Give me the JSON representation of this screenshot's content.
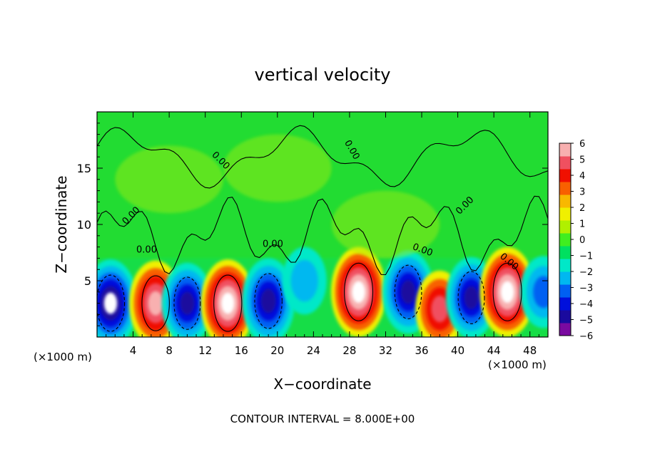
{
  "chart_data": {
    "type": "heatmap",
    "title": "vertical velocity",
    "xlabel": "X−coordinate",
    "ylabel": "Z−coordinate",
    "x_unit_left": "(×1000 m)",
    "x_unit_right": "(×1000 m)",
    "footer": "CONTOUR INTERVAL = 8.000E+00",
    "contour_label": "0.00",
    "xlim": [
      0,
      50
    ],
    "ylim": [
      0,
      20
    ],
    "x_ticks": [
      4,
      8,
      12,
      16,
      20,
      24,
      28,
      32,
      36,
      40,
      44,
      48
    ],
    "x_tick_labels": [
      "4",
      "8",
      "12",
      "16",
      "20",
      "24",
      "28",
      "32",
      "36",
      "40",
      "44",
      "48"
    ],
    "y_ticks": [
      5,
      10,
      15
    ],
    "y_tick_labels": [
      "5",
      "10",
      "15"
    ],
    "colorbar": {
      "min": -6,
      "max": 6,
      "tick_values": [
        6,
        5,
        4,
        3,
        2,
        1,
        0,
        -1,
        -2,
        -3,
        -4,
        -5,
        -6
      ],
      "tick_labels": [
        "6",
        "5",
        "4",
        "3",
        "2",
        "1",
        "0",
        "−1",
        "−2",
        "−3",
        "−4",
        "−5",
        "−6"
      ],
      "colors": [
        "#7a0aa0",
        "#1a0a9e",
        "#0010dc",
        "#0060f2",
        "#00b8f0",
        "#00e8c8",
        "#00e060",
        "#40ee20",
        "#b0f000",
        "#f0f000",
        "#f8b800",
        "#f86000",
        "#f01000",
        "#f05060",
        "#f8b0b0"
      ]
    },
    "cells": [
      {
        "x": 1.5,
        "z": 3.0,
        "w": -7.5
      },
      {
        "x": 6.5,
        "z": 3.0,
        "w": 7.0
      },
      {
        "x": 10.0,
        "z": 3.0,
        "w": -6.0
      },
      {
        "x": 14.5,
        "z": 3.0,
        "w": 7.5
      },
      {
        "x": 19.0,
        "z": 3.2,
        "w": -7.0
      },
      {
        "x": 23.0,
        "z": 5.0,
        "w": -3.0
      },
      {
        "x": 29.0,
        "z": 4.0,
        "w": 8.0
      },
      {
        "x": 34.5,
        "z": 4.0,
        "w": -6.5
      },
      {
        "x": 38.0,
        "z": 2.5,
        "w": 5.0
      },
      {
        "x": 41.5,
        "z": 3.5,
        "w": -6.0
      },
      {
        "x": 45.5,
        "z": 4.0,
        "w": 8.0
      },
      {
        "x": 49.5,
        "z": 4.0,
        "w": -4.0
      },
      {
        "x": 20.0,
        "z": 15.0,
        "w": 1.0
      },
      {
        "x": 32.0,
        "z": 10.0,
        "w": 1.2
      },
      {
        "x": 8.0,
        "z": 14.0,
        "w": 0.8
      }
    ]
  }
}
